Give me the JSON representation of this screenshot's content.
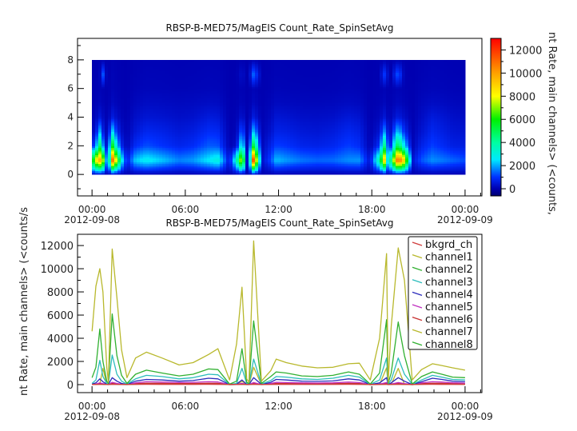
{
  "chart_data": [
    {
      "type": "heatmap",
      "title": "RBSP-B-MED75/MagEIS  Count_Rate_SpinSetAvg",
      "ylim": [
        -1.5,
        9.5
      ],
      "yticks": [
        "0",
        "2",
        "4",
        "6",
        "8"
      ],
      "xlim": [
        "2012-09-07T23:04",
        "2012-09-09T01:05"
      ],
      "xticks": [
        "00:00",
        "06:00",
        "12:00",
        "18:00",
        "00:00"
      ],
      "xtick_dates": [
        "2012-09-08",
        "2012-09-09"
      ],
      "rows": [
        "bkgrd_ch",
        "channel1",
        "channel2",
        "channel3",
        "channel4",
        "channel5",
        "channel6",
        "channel7",
        "channel8"
      ],
      "colorbar": {
        "label": "nt Rate, main channels> (<counts,",
        "range": [
          -620,
          13000
        ],
        "ticks": [
          "0",
          "2000",
          "4000",
          "6000",
          "8000",
          "10000",
          "12000"
        ],
        "colormap": "rainbow"
      }
    },
    {
      "type": "line",
      "title": "RBSP-B-MED75/MagEIS  Count_Rate_SpinSetAvg",
      "ylabel": "nt Rate, main channels> (<counts/s",
      "ylim": [
        -690,
        12970
      ],
      "yticks": [
        "0",
        "2000",
        "4000",
        "6000",
        "8000",
        "10000",
        "12000"
      ],
      "xlim": [
        "2012-09-07T23:04",
        "2012-09-09T01:05"
      ],
      "xticks": [
        "00:00",
        "06:00",
        "12:00",
        "18:00",
        "00:00"
      ],
      "xtick_dates": [
        "2012-09-08",
        "2012-09-09"
      ],
      "legend": "top-right",
      "x": [
        "2012-09-08T00:00",
        "2012-09-08T00:15",
        "2012-09-08T00:30",
        "2012-09-08T00:42",
        "2012-09-08T00:57",
        "2012-09-08T01:03",
        "2012-09-08T01:18",
        "2012-09-08T01:36",
        "2012-09-08T01:54",
        "2012-09-08T02:15",
        "2012-09-08T02:48",
        "2012-09-08T03:30",
        "2012-09-08T04:30",
        "2012-09-08T05:36",
        "2012-09-08T06:30",
        "2012-09-08T07:30",
        "2012-09-08T08:06",
        "2012-09-08T08:51",
        "2012-09-08T09:18",
        "2012-09-08T09:39",
        "2012-09-08T09:57",
        "2012-09-08T10:06",
        "2012-09-08T10:24",
        "2012-09-08T10:54",
        "2012-09-08T11:30",
        "2012-09-08T11:51",
        "2012-09-08T12:30",
        "2012-09-08T13:30",
        "2012-09-08T14:30",
        "2012-09-08T15:30",
        "2012-09-08T16:30",
        "2012-09-08T17:12",
        "2012-09-08T17:54",
        "2012-09-08T18:30",
        "2012-09-08T18:57",
        "2012-09-08T19:03",
        "2012-09-08T19:15",
        "2012-09-08T19:42",
        "2012-09-08T20:06",
        "2012-09-08T20:36",
        "2012-09-08T21:12",
        "2012-09-08T21:54",
        "2012-09-08T22:30",
        "2012-09-08T23:12",
        "2012-09-09T00:00"
      ],
      "series": [
        {
          "name": "bkgrd_ch",
          "color": "#d03c3c",
          "values": [
            20,
            20,
            30,
            20,
            20,
            20,
            30,
            20,
            20,
            20,
            20,
            30,
            20,
            20,
            20,
            30,
            20,
            20,
            20,
            30,
            20,
            20,
            30,
            20,
            20,
            30,
            20,
            20,
            20,
            20,
            30,
            20,
            20,
            20,
            30,
            20,
            20,
            30,
            20,
            20,
            20,
            30,
            20,
            20,
            20
          ]
        },
        {
          "name": "channel1",
          "color": "#b8b82c",
          "values": [
            4600,
            8500,
            10000,
            8000,
            1500,
            200,
            11700,
            7500,
            3000,
            600,
            2300,
            2800,
            2300,
            1700,
            1900,
            2600,
            3100,
            400,
            3500,
            8400,
            500,
            200,
            12400,
            300,
            1200,
            2200,
            1900,
            1600,
            1450,
            1500,
            1800,
            1850,
            400,
            4000,
            11300,
            200,
            5000,
            11800,
            9000,
            400,
            1300,
            1800,
            1650,
            1450,
            1250
          ]
        },
        {
          "name": "channel2",
          "color": "#30b030",
          "values": [
            600,
            1500,
            4800,
            2000,
            300,
            100,
            6100,
            2500,
            800,
            100,
            900,
            1250,
            1000,
            750,
            900,
            1350,
            1300,
            50,
            300,
            3100,
            200,
            100,
            5500,
            100,
            700,
            1100,
            1000,
            750,
            700,
            800,
            1100,
            900,
            50,
            1000,
            5600,
            100,
            1000,
            5400,
            2500,
            50,
            700,
            1100,
            900,
            650,
            600
          ]
        },
        {
          "name": "channel3",
          "color": "#2cbcbc",
          "values": [
            100,
            400,
            2100,
            700,
            100,
            50,
            2550,
            900,
            300,
            50,
            500,
            800,
            700,
            500,
            600,
            900,
            850,
            20,
            100,
            1400,
            100,
            50,
            2200,
            50,
            350,
            700,
            650,
            500,
            450,
            550,
            800,
            650,
            20,
            400,
            2300,
            50,
            400,
            2300,
            900,
            20,
            400,
            800,
            650,
            450,
            400
          ]
        },
        {
          "name": "channel4",
          "color": "#2c2cbc",
          "values": [
            50,
            150,
            500,
            250,
            50,
            20,
            600,
            300,
            100,
            20,
            300,
            450,
            400,
            300,
            350,
            550,
            500,
            10,
            50,
            400,
            30,
            20,
            600,
            20,
            200,
            450,
            400,
            300,
            280,
            320,
            500,
            400,
            10,
            150,
            600,
            20,
            150,
            600,
            300,
            10,
            250,
            550,
            450,
            300,
            250
          ]
        },
        {
          "name": "channel5",
          "color": "#c030c0",
          "values": [
            20,
            50,
            150,
            80,
            20,
            10,
            200,
            100,
            40,
            10,
            150,
            250,
            220,
            180,
            200,
            250,
            230,
            5,
            20,
            120,
            10,
            10,
            180,
            10,
            100,
            200,
            180,
            150,
            140,
            160,
            220,
            180,
            5,
            50,
            180,
            10,
            50,
            180,
            90,
            5,
            150,
            250,
            220,
            160,
            130
          ]
        },
        {
          "name": "channel6",
          "color": "#c83232",
          "values": [
            10,
            25,
            80,
            40,
            10,
            5,
            100,
            50,
            20,
            5,
            80,
            120,
            110,
            90,
            100,
            120,
            110,
            3,
            10,
            60,
            5,
            5,
            90,
            5,
            50,
            100,
            90,
            80,
            70,
            80,
            110,
            90,
            3,
            25,
            90,
            5,
            25,
            90,
            45,
            3,
            80,
            120,
            110,
            80,
            70
          ]
        },
        {
          "name": "channel7",
          "color": "#b8b82c",
          "values": [
            10,
            20,
            60,
            1400,
            10,
            5,
            80,
            40,
            15,
            5,
            50,
            90,
            80,
            60,
            70,
            90,
            80,
            2,
            10,
            300,
            5,
            5,
            1500,
            5,
            35,
            70,
            60,
            50,
            50,
            55,
            80,
            60,
            2,
            20,
            1450,
            5,
            20,
            1400,
            30,
            2,
            50,
            90,
            80,
            55,
            45
          ]
        },
        {
          "name": "channel8",
          "color": "#30b030",
          "values": [
            5,
            15,
            40,
            20,
            5,
            3,
            50,
            25,
            10,
            3,
            35,
            60,
            55,
            45,
            50,
            60,
            55,
            2,
            5,
            30,
            3,
            3,
            45,
            3,
            25,
            50,
            45,
            40,
            35,
            40,
            55,
            45,
            2,
            15,
            45,
            3,
            15,
            45,
            22,
            2,
            35,
            60,
            55,
            40,
            35
          ]
        }
      ]
    }
  ]
}
